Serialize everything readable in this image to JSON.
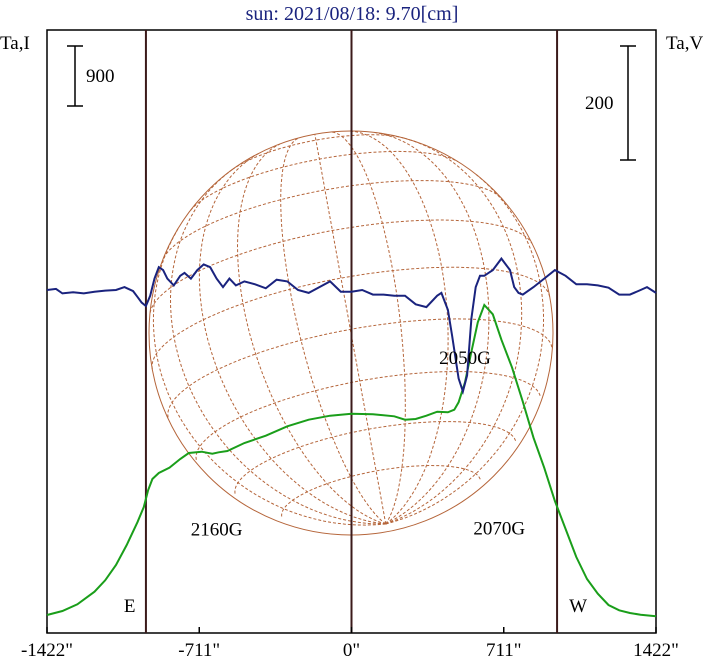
{
  "chart_data": {
    "type": "line",
    "title": "sun: 2021/08/18: 9.70[cm]",
    "left_axis_label": "Ta,I",
    "right_axis_label": "Ta,V",
    "left_scale_bar": "900",
    "right_scale_bar": "200",
    "x_ticks": [
      {
        "value": -1422,
        "label": "-1422\""
      },
      {
        "value": -711,
        "label": "-711\""
      },
      {
        "value": 0,
        "label": "0\""
      },
      {
        "value": 711,
        "label": "711\""
      },
      {
        "value": 1422,
        "label": "1422\""
      }
    ],
    "xlim": [
      -1422,
      1422
    ],
    "limb_markers": [
      {
        "x": -960,
        "label": "E"
      },
      {
        "x": 0,
        "label": ""
      },
      {
        "x": 960,
        "label": "W"
      }
    ],
    "grid": "solar disk with heliographic grid",
    "annotations": [
      {
        "text": "2160G",
        "x": -630,
        "level": 1220
      },
      {
        "text": "2070G",
        "x": 690,
        "level": 1240
      },
      {
        "text": "2050G",
        "x": 530,
        "level": -130
      }
    ],
    "colors": {
      "intensity": "#1a9e1a",
      "polarization": "#1a237e",
      "disk": "#b5653a",
      "limb_lines": "#3b1a1a",
      "title": "#1a237e"
    },
    "series": [
      {
        "key": "I",
        "scale": "left",
        "x": [
          -1422,
          -1350,
          -1280,
          -1200,
          -1150,
          -1100,
          -1050,
          -1000,
          -970,
          -950,
          -930,
          -900,
          -850,
          -800,
          -760,
          -700,
          -650,
          -620,
          -580,
          -500,
          -400,
          -300,
          -200,
          -100,
          0,
          100,
          200,
          250,
          300,
          350,
          400,
          450,
          480,
          500,
          530,
          560,
          590,
          620,
          660,
          700,
          750,
          800,
          850,
          900,
          950,
          1000,
          1050,
          1100,
          1150,
          1200,
          1250,
          1300,
          1350,
          1422
        ],
        "values": [
          30,
          90,
          190,
          380,
          550,
          780,
          1080,
          1420,
          1650,
          1900,
          2070,
          2160,
          2240,
          2370,
          2460,
          2480,
          2450,
          2470,
          2490,
          2610,
          2720,
          2860,
          2960,
          3020,
          3050,
          3040,
          3010,
          2960,
          2970,
          3020,
          3080,
          3070,
          3110,
          3220,
          3520,
          3980,
          4420,
          4680,
          4540,
          4160,
          3740,
          3230,
          2690,
          2240,
          1740,
          1320,
          900,
          570,
          350,
          180,
          100,
          60,
          35,
          10
        ]
      },
      {
        "key": "V",
        "scale": "right",
        "x": [
          -1422,
          -1380,
          -1350,
          -1300,
          -1250,
          -1200,
          -1150,
          -1100,
          -1060,
          -1020,
          -1000,
          -980,
          -960,
          -940,
          -920,
          -900,
          -880,
          -860,
          -830,
          -800,
          -780,
          -750,
          -720,
          -690,
          -660,
          -630,
          -600,
          -570,
          -540,
          -500,
          -450,
          -400,
          -350,
          -300,
          -250,
          -200,
          -150,
          -100,
          -50,
          0,
          50,
          100,
          150,
          200,
          250,
          300,
          350,
          400,
          420,
          450,
          470,
          500,
          520,
          540,
          560,
          580,
          600,
          620,
          640,
          660,
          680,
          700,
          720,
          740,
          760,
          780,
          800,
          850,
          900,
          950,
          1000,
          1050,
          1100,
          1150,
          1200,
          1250,
          1300,
          1350,
          1380,
          1422
        ],
        "values": [
          0,
          2,
          -6,
          -4,
          -6,
          -3,
          -1,
          0,
          5,
          -2,
          -12,
          -22,
          -28,
          -10,
          20,
          40,
          35,
          20,
          8,
          25,
          30,
          20,
          35,
          45,
          40,
          20,
          5,
          20,
          8,
          15,
          10,
          3,
          18,
          15,
          0,
          -5,
          5,
          15,
          -3,
          -3,
          0,
          -8,
          -8,
          -10,
          -10,
          -25,
          -30,
          -10,
          -5,
          -35,
          -80,
          -155,
          -178,
          -150,
          -50,
          5,
          25,
          25,
          30,
          35,
          45,
          55,
          45,
          35,
          5,
          -5,
          -8,
          5,
          20,
          35,
          25,
          10,
          10,
          8,
          4,
          -8,
          -8,
          0,
          5,
          -5
        ]
      }
    ]
  }
}
